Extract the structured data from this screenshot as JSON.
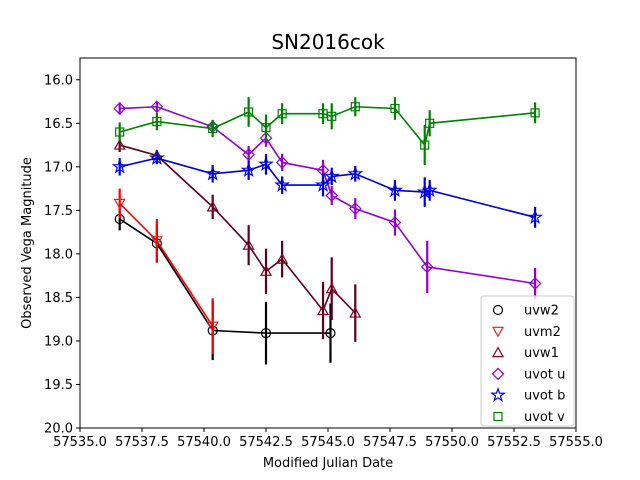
{
  "chart_data": {
    "type": "line",
    "title": "SN2016cok",
    "xlabel": "Modified Julian Date",
    "ylabel": "Observed Vega Magnitude",
    "xlim": [
      57535.0,
      57555.0
    ],
    "ylim": [
      20.0,
      15.75
    ],
    "y_inverted": true,
    "grid": false,
    "legend_position": "lower-right",
    "x_ticks": [
      57535.0,
      57537.5,
      57540.0,
      57542.5,
      57545.0,
      57547.5,
      57550.0,
      57552.5,
      57555.0
    ],
    "x_tick_labels": [
      "57535.0",
      "57537.5",
      "57540.0",
      "57542.5",
      "57545.0",
      "57547.5",
      "57550.0",
      "57552.5",
      "57555.0"
    ],
    "y_ticks": [
      16.0,
      16.5,
      17.0,
      17.5,
      18.0,
      18.5,
      19.0,
      19.5,
      20.0
    ],
    "y_tick_labels": [
      "16.0",
      "16.5",
      "17.0",
      "17.5",
      "18.0",
      "18.5",
      "19.0",
      "19.5",
      "20.0"
    ],
    "series": [
      {
        "name": "uvw2",
        "marker": "circle",
        "marker_color": "#000000",
        "line_color": "#000000",
        "points": [
          {
            "x": 57536.6,
            "y": 17.6,
            "err": 0.13
          },
          {
            "x": 57538.1,
            "y": 17.88,
            "err": 0.22
          },
          {
            "x": 57540.35,
            "y": 18.88,
            "err": 0.34
          },
          {
            "x": 57542.5,
            "y": 18.91,
            "err": 0.36
          },
          {
            "x": 57545.1,
            "y": 18.91,
            "err": 0.34
          }
        ]
      },
      {
        "name": "uvm2",
        "marker": "triangle-down",
        "marker_color": "#d62728",
        "line_color": "#ff0000",
        "points": [
          {
            "x": 57536.6,
            "y": 17.42,
            "err": 0.17
          },
          {
            "x": 57538.1,
            "y": 17.85,
            "err": 0.25
          },
          {
            "x": 57540.35,
            "y": 18.83,
            "err": 0.32
          }
        ]
      },
      {
        "name": "uvw1",
        "marker": "triangle-up",
        "marker_color": "#800020",
        "line_color": "#5c001f",
        "points": [
          {
            "x": 57536.6,
            "y": 16.75,
            "err": 0.08
          },
          {
            "x": 57538.1,
            "y": 16.87,
            "err": 0.06
          },
          {
            "x": 57540.35,
            "y": 17.46,
            "err": 0.14
          },
          {
            "x": 57541.8,
            "y": 17.9,
            "err": 0.23
          },
          {
            "x": 57542.5,
            "y": 18.2,
            "err": 0.26
          },
          {
            "x": 57543.15,
            "y": 18.06,
            "err": 0.21
          },
          {
            "x": 57544.8,
            "y": 18.65,
            "err": 0.33
          },
          {
            "x": 57545.15,
            "y": 18.4,
            "err": 0.36
          },
          {
            "x": 57546.1,
            "y": 18.68,
            "err": 0.33
          }
        ]
      },
      {
        "name": "uvot u",
        "marker": "diamond",
        "marker_color": "#9400d3",
        "line_color": "#9400d3",
        "points": [
          {
            "x": 57536.6,
            "y": 16.33,
            "err": 0.07
          },
          {
            "x": 57538.1,
            "y": 16.31,
            "err": 0.06
          },
          {
            "x": 57540.35,
            "y": 16.54,
            "err": 0.07
          },
          {
            "x": 57541.8,
            "y": 16.86,
            "err": 0.1
          },
          {
            "x": 57542.5,
            "y": 16.67,
            "err": 0.1
          },
          {
            "x": 57543.15,
            "y": 16.95,
            "err": 0.1
          },
          {
            "x": 57544.8,
            "y": 17.04,
            "err": 0.12
          },
          {
            "x": 57545.15,
            "y": 17.33,
            "err": 0.11
          },
          {
            "x": 57546.1,
            "y": 17.48,
            "err": 0.12
          },
          {
            "x": 57547.7,
            "y": 17.64,
            "err": 0.15
          },
          {
            "x": 57549.0,
            "y": 18.15,
            "err": 0.3
          },
          {
            "x": 57553.35,
            "y": 18.34,
            "err": 0.18
          }
        ]
      },
      {
        "name": "uvot b",
        "marker": "star",
        "marker_color": "#0000ee",
        "line_color": "#0000cd",
        "points": [
          {
            "x": 57536.6,
            "y": 17.0,
            "err": 0.1
          },
          {
            "x": 57538.1,
            "y": 16.9,
            "err": 0.07
          },
          {
            "x": 57540.35,
            "y": 17.08,
            "err": 0.1
          },
          {
            "x": 57541.8,
            "y": 17.04,
            "err": 0.11
          },
          {
            "x": 57542.5,
            "y": 16.97,
            "err": 0.12
          },
          {
            "x": 57543.15,
            "y": 17.21,
            "err": 0.1
          },
          {
            "x": 57544.8,
            "y": 17.21,
            "err": 0.13
          },
          {
            "x": 57545.15,
            "y": 17.11,
            "err": 0.1
          },
          {
            "x": 57546.1,
            "y": 17.08,
            "err": 0.09
          },
          {
            "x": 57547.7,
            "y": 17.27,
            "err": 0.12
          },
          {
            "x": 57548.9,
            "y": 17.29,
            "err": 0.17
          },
          {
            "x": 57549.1,
            "y": 17.27,
            "err": 0.12
          },
          {
            "x": 57553.35,
            "y": 17.58,
            "err": 0.12
          }
        ]
      },
      {
        "name": "uvot v",
        "marker": "square",
        "marker_color": "#008000",
        "line_color": "#008000",
        "points": [
          {
            "x": 57536.6,
            "y": 16.6,
            "err": 0.11
          },
          {
            "x": 57538.1,
            "y": 16.48,
            "err": 0.1
          },
          {
            "x": 57540.35,
            "y": 16.56,
            "err": 0.1
          },
          {
            "x": 57541.8,
            "y": 16.37,
            "err": 0.17
          },
          {
            "x": 57542.5,
            "y": 16.55,
            "err": 0.15
          },
          {
            "x": 57543.15,
            "y": 16.39,
            "err": 0.12
          },
          {
            "x": 57544.8,
            "y": 16.39,
            "err": 0.12
          },
          {
            "x": 57545.15,
            "y": 16.42,
            "err": 0.15
          },
          {
            "x": 57546.1,
            "y": 16.31,
            "err": 0.11
          },
          {
            "x": 57547.7,
            "y": 16.33,
            "err": 0.13
          },
          {
            "x": 57548.9,
            "y": 16.75,
            "err": 0.23
          },
          {
            "x": 57549.1,
            "y": 16.5,
            "err": 0.15
          },
          {
            "x": 57553.35,
            "y": 16.38,
            "err": 0.12
          }
        ]
      }
    ]
  }
}
